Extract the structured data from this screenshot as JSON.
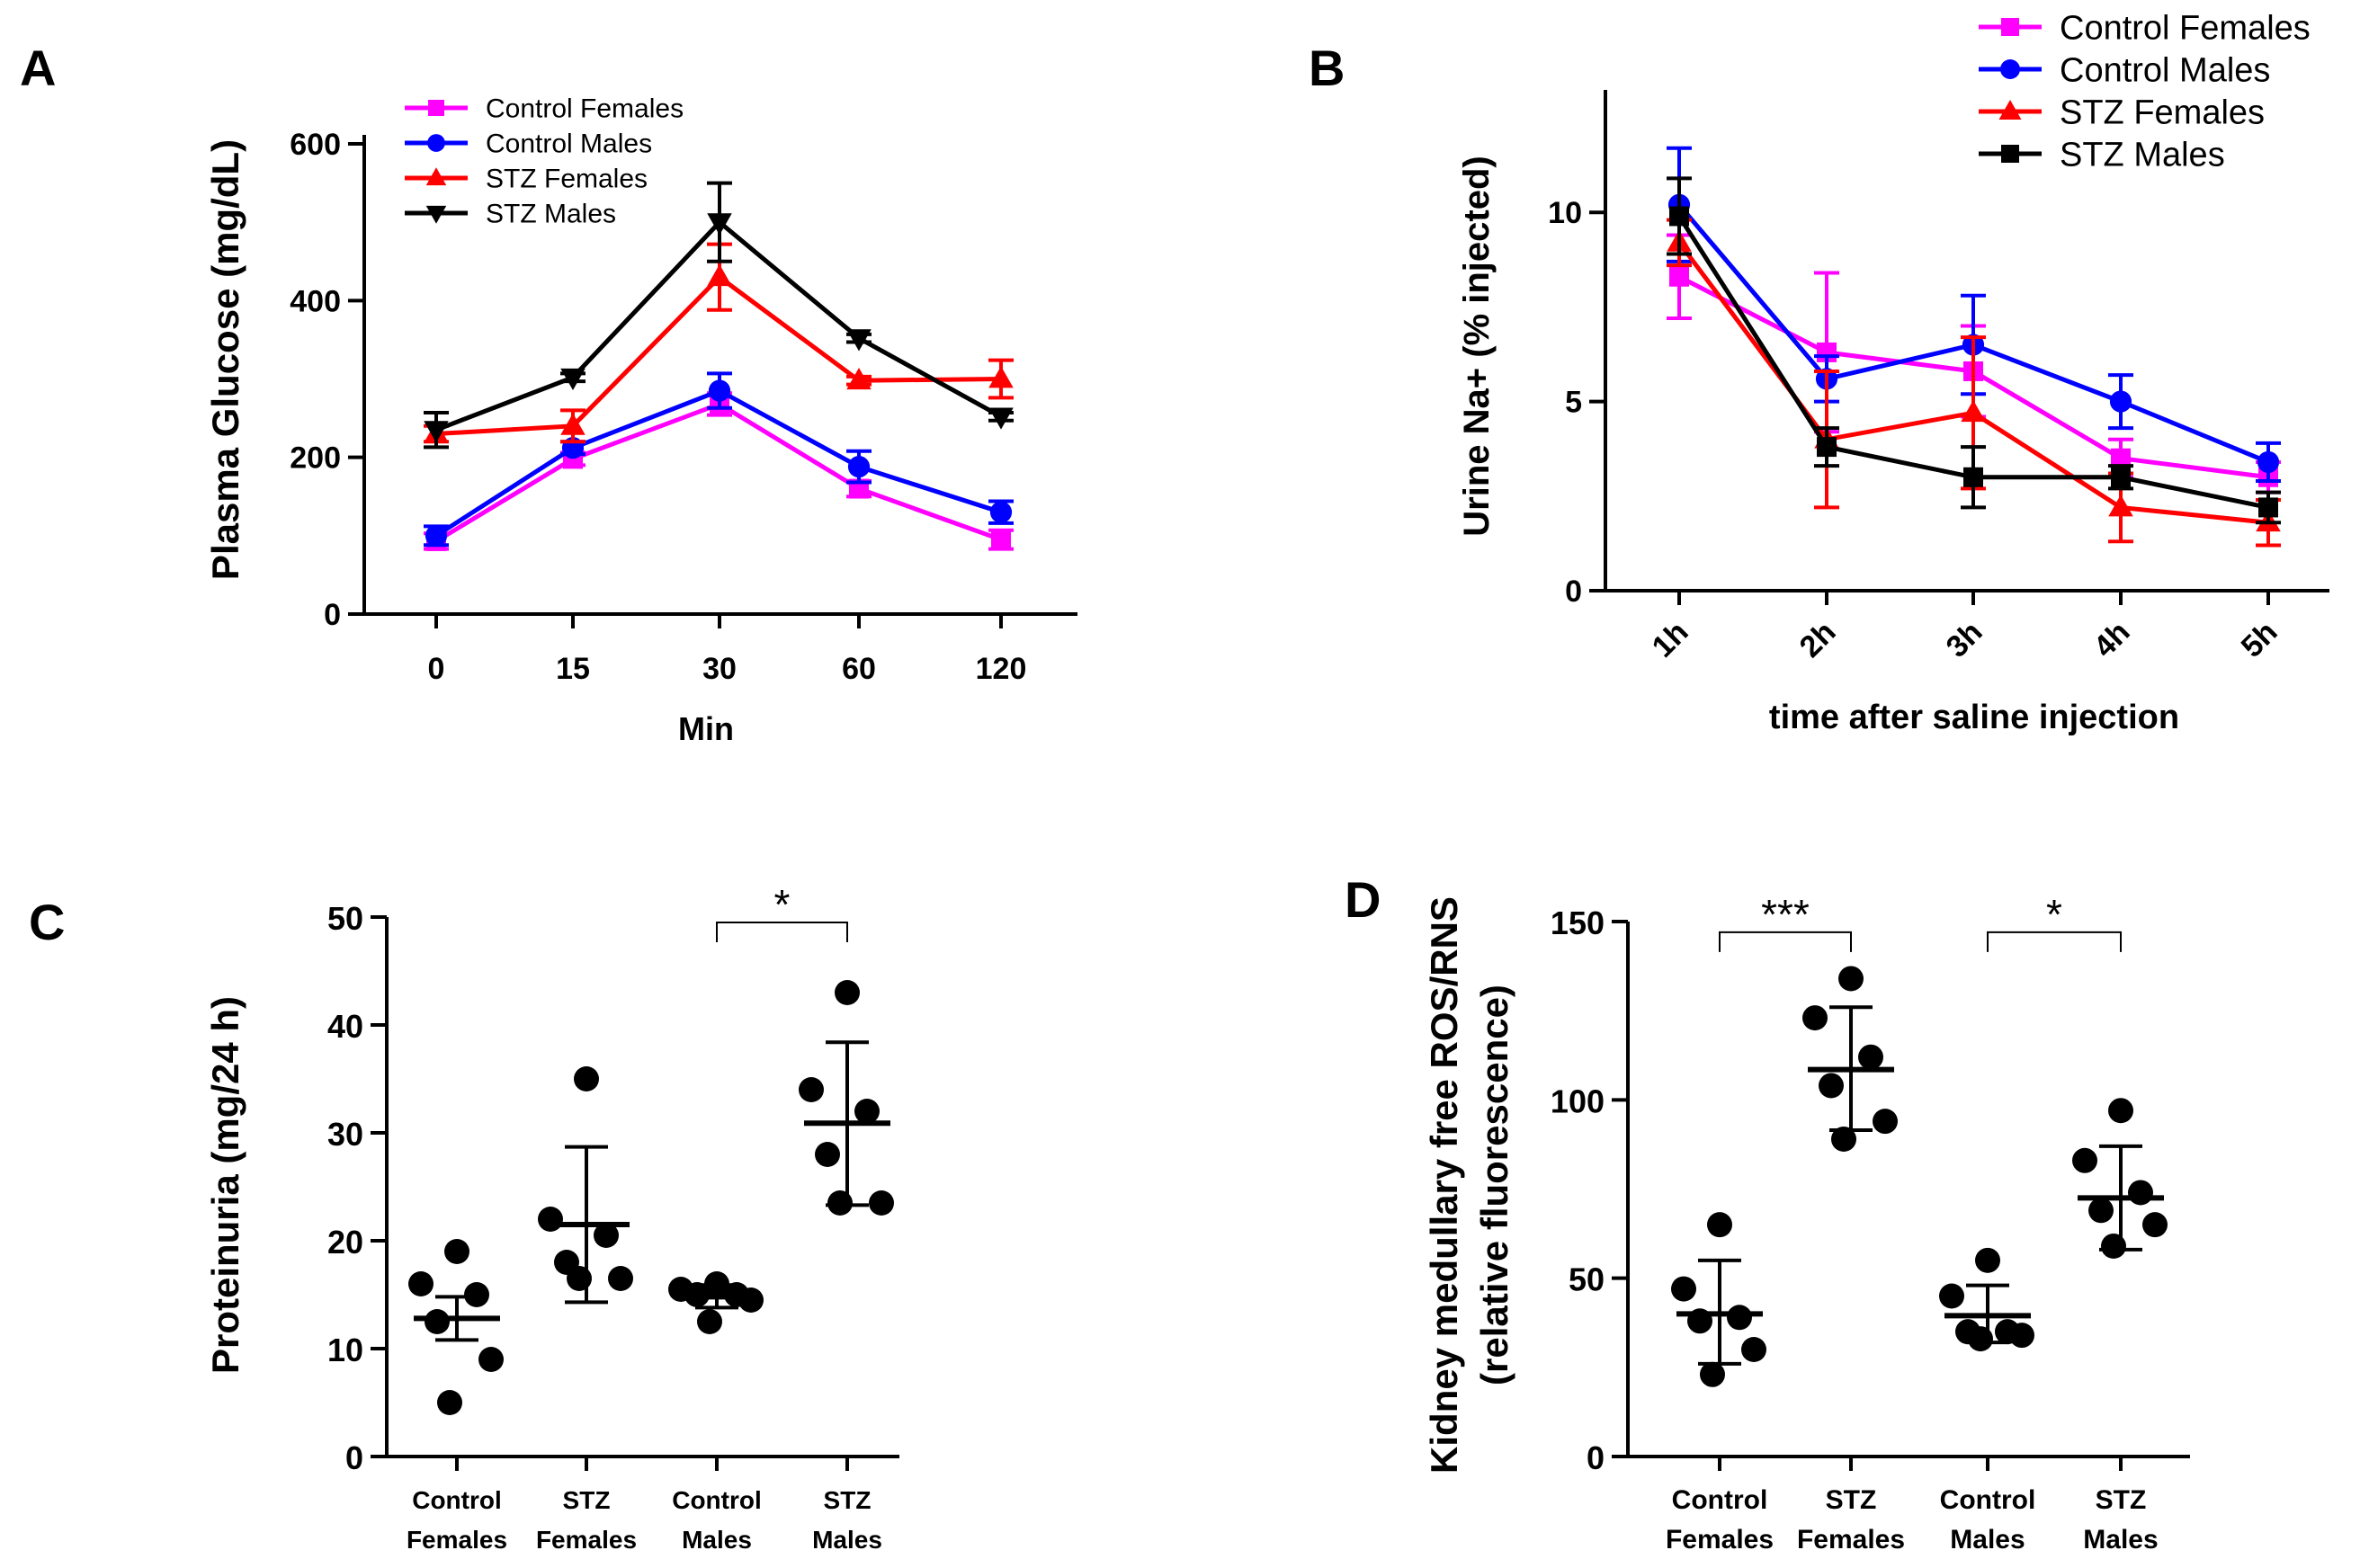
{
  "chart_data": [
    {
      "panel": "A",
      "type": "line",
      "xlabel": "Min",
      "ylabel": "Plasma Glucose (mg/dL)",
      "categories": [
        "0",
        "15",
        "30",
        "60",
        "120"
      ],
      "ylim": [
        0,
        600
      ],
      "yticks": [
        0,
        200,
        400,
        600
      ],
      "legend_position": "top-left",
      "series": [
        {
          "name": "Control Females",
          "color": "#ff00ff",
          "marker": "square",
          "values": [
            93,
            198,
            268,
            160,
            95
          ],
          "errors": [
            10,
            8,
            14,
            10,
            12
          ]
        },
        {
          "name": "Control Males",
          "color": "#0000ff",
          "marker": "circle",
          "values": [
            100,
            212,
            285,
            188,
            130
          ],
          "errors": [
            12,
            8,
            22,
            20,
            14
          ]
        },
        {
          "name": "STZ Females",
          "color": "#ff0000",
          "marker": "triangle-up",
          "values": [
            230,
            240,
            430,
            298,
            300
          ],
          "errors": [
            10,
            20,
            42,
            5,
            24
          ]
        },
        {
          "name": "STZ Males",
          "color": "#000000",
          "marker": "triangle-down",
          "values": [
            235,
            302,
            500,
            352,
            252
          ],
          "errors": [
            22,
            5,
            50,
            5,
            5
          ]
        }
      ]
    },
    {
      "panel": "B",
      "type": "line",
      "xlabel": "time after saline injection",
      "ylabel": "Urine Na+ (% injected)",
      "categories": [
        "1h",
        "2h",
        "3h",
        "4h",
        "5h"
      ],
      "ylim": [
        0,
        13
      ],
      "yticks": [
        0,
        5,
        10
      ],
      "legend_position": "top-right",
      "series": [
        {
          "name": "Control Females",
          "color": "#ff00ff",
          "marker": "square",
          "values": [
            8.3,
            6.3,
            5.8,
            3.5,
            3.0
          ],
          "errors": [
            1.1,
            2.1,
            1.2,
            0.5,
            0.4
          ]
        },
        {
          "name": "Control Males",
          "color": "#0000ff",
          "marker": "circle",
          "values": [
            10.2,
            5.6,
            6.5,
            5.0,
            3.4
          ],
          "errors": [
            1.5,
            0.6,
            1.3,
            0.7,
            0.5
          ]
        },
        {
          "name": "STZ Females",
          "color": "#ff0000",
          "marker": "triangle-up",
          "values": [
            9.2,
            4.0,
            4.7,
            2.2,
            1.8
          ],
          "errors": [
            0.6,
            1.8,
            2.0,
            0.9,
            0.6
          ]
        },
        {
          "name": "STZ Males",
          "color": "#000000",
          "marker": "square",
          "values": [
            9.9,
            3.8,
            3.0,
            3.0,
            2.2
          ],
          "errors": [
            1.0,
            0.5,
            0.8,
            0.3,
            0.4
          ]
        }
      ]
    },
    {
      "panel": "C",
      "type": "scatter",
      "ylabel": "Proteinuria (mg/24 h)",
      "ylim": [
        0,
        50
      ],
      "yticks": [
        0,
        10,
        20,
        30,
        40,
        50
      ],
      "groups": [
        {
          "label": [
            "Control",
            "Females"
          ],
          "mean": 12.8,
          "sd_low": 10.8,
          "sd_high": 14.8,
          "points": [
            19,
            16,
            15,
            12.5,
            9,
            5
          ]
        },
        {
          "label": [
            "STZ",
            "Females"
          ],
          "mean": 21.5,
          "sd_low": 14.3,
          "sd_high": 28.7,
          "points": [
            35,
            22,
            20.5,
            18,
            16.5,
            16.5
          ]
        },
        {
          "label": [
            "Control",
            "Males"
          ],
          "mean": 14.8,
          "sd_low": 13.8,
          "sd_high": 15.9,
          "points": [
            16,
            15.5,
            15,
            15,
            14.5,
            12.5
          ]
        },
        {
          "label": [
            "STZ",
            "Males"
          ],
          "mean": 30.9,
          "sd_low": 23.3,
          "sd_high": 38.4,
          "points": [
            43,
            34,
            32,
            28,
            23.5,
            23.5
          ]
        }
      ],
      "significance": [
        {
          "from": 2,
          "to": 3,
          "label": "*",
          "level": 49.5
        }
      ]
    },
    {
      "panel": "D",
      "type": "scatter",
      "ylabel": [
        "Kidney medullary free ROS/RNS",
        "(relative fluorescence)"
      ],
      "ylim": [
        0,
        150
      ],
      "yticks": [
        0,
        50,
        100,
        150
      ],
      "groups": [
        {
          "label": [
            "Control",
            "Females"
          ],
          "mean": 40,
          "sd_low": 26,
          "sd_high": 55,
          "points": [
            65,
            47,
            39,
            38,
            30,
            23
          ]
        },
        {
          "label": [
            "STZ",
            "Females"
          ],
          "mean": 108.5,
          "sd_low": 91.5,
          "sd_high": 126,
          "points": [
            134,
            123,
            112,
            104,
            94,
            89
          ]
        },
        {
          "label": [
            "Control",
            "Males"
          ],
          "mean": 39.5,
          "sd_low": 32,
          "sd_high": 48,
          "points": [
            55,
            45,
            35,
            35,
            34,
            33
          ]
        },
        {
          "label": [
            "STZ",
            "Males"
          ],
          "mean": 72.5,
          "sd_low": 58,
          "sd_high": 87,
          "points": [
            97,
            83,
            74,
            69,
            65,
            59
          ]
        }
      ],
      "significance": [
        {
          "from": 0,
          "to": 1,
          "label": "***",
          "level": 147
        },
        {
          "from": 2,
          "to": 3,
          "label": "*",
          "level": 147
        }
      ]
    }
  ],
  "panel_labels": [
    "A",
    "B",
    "C",
    "D"
  ]
}
